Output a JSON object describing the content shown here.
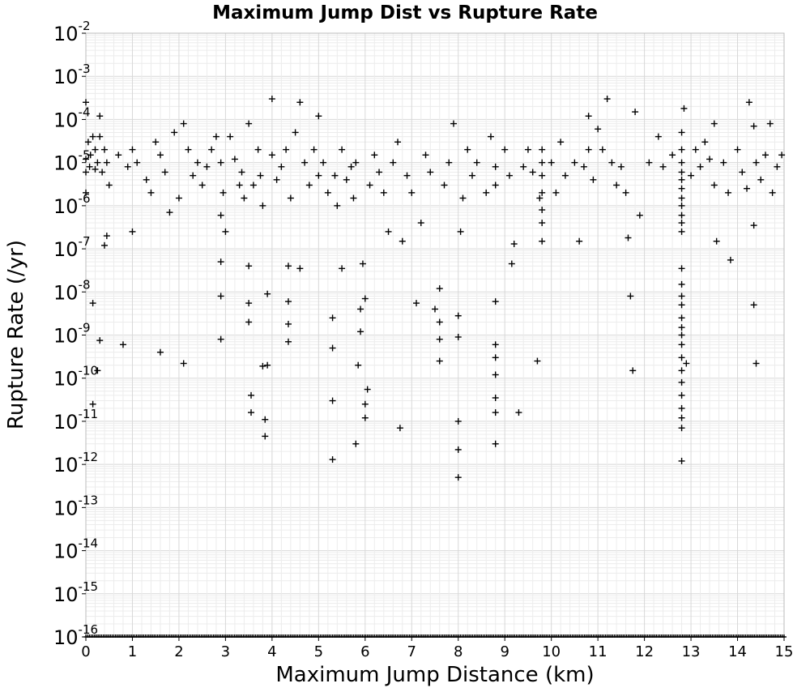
{
  "chart_data": {
    "type": "scatter",
    "title": "Maximum Jump Dist vs Rupture Rate",
    "xlabel": "Maximum Jump Distance (km)",
    "ylabel": "Rupture Rate (/yr)",
    "xlim": [
      0,
      15
    ],
    "ylim_log10": [
      -16,
      -2
    ],
    "y_scale": "log",
    "x_ticks": [
      "0",
      "1",
      "2",
      "3",
      "4",
      "5",
      "6",
      "7",
      "8",
      "9",
      "10",
      "11",
      "12",
      "13",
      "14",
      "15"
    ],
    "y_ticks": [
      {
        "base": "10",
        "exp": "-2"
      },
      {
        "base": "10",
        "exp": "-3"
      },
      {
        "base": "10",
        "exp": "-4"
      },
      {
        "base": "10",
        "exp": "-5"
      },
      {
        "base": "10",
        "exp": "-6"
      },
      {
        "base": "10",
        "exp": "-7"
      },
      {
        "base": "10",
        "exp": "-8"
      },
      {
        "base": "10",
        "exp": "-9"
      },
      {
        "base": "10",
        "exp": "-10"
      },
      {
        "base": "10",
        "exp": "-11"
      },
      {
        "base": "10",
        "exp": "-12"
      },
      {
        "base": "10",
        "exp": "-13"
      },
      {
        "base": "10",
        "exp": "-14"
      },
      {
        "base": "10",
        "exp": "-15"
      },
      {
        "base": "10",
        "exp": "-16"
      }
    ],
    "grid": true,
    "marker": "+",
    "marker_color": "#000000",
    "series": [
      {
        "points": [
          [
            0.0,
            0.00025
          ],
          [
            0.0,
            1.2e-05
          ],
          [
            0.0,
            6e-06
          ],
          [
            0.0,
            2e-06
          ],
          [
            0.05,
            3e-05
          ],
          [
            0.08,
            8e-06
          ],
          [
            0.1,
            1.5e-05
          ],
          [
            0.15,
            4e-05
          ],
          [
            0.2,
            2e-05
          ],
          [
            0.2,
            7e-06
          ],
          [
            0.25,
            1e-05
          ],
          [
            0.3,
            0.00012
          ],
          [
            0.3,
            4e-05
          ],
          [
            0.35,
            6e-06
          ],
          [
            0.4,
            2e-05
          ],
          [
            0.45,
            1e-05
          ],
          [
            0.5,
            3e-06
          ],
          [
            0.4,
            1.2e-07
          ],
          [
            0.45,
            2e-07
          ],
          [
            0.15,
            5.5e-09
          ],
          [
            0.3,
            7.5e-10
          ],
          [
            0.25,
            1.5e-10
          ],
          [
            0.15,
            2.5e-11
          ],
          [
            0.8,
            6e-10
          ],
          [
            1.0,
            2.5e-07
          ],
          [
            0.7,
            1.5e-05
          ],
          [
            0.9,
            8e-06
          ],
          [
            1.0,
            2e-05
          ],
          [
            1.1,
            1e-05
          ],
          [
            1.3,
            4e-06
          ],
          [
            1.4,
            2e-06
          ],
          [
            1.5,
            3e-05
          ],
          [
            1.6,
            1.5e-05
          ],
          [
            1.7,
            6e-06
          ],
          [
            1.8,
            7e-07
          ],
          [
            1.9,
            5e-05
          ],
          [
            2.0,
            1.5e-06
          ],
          [
            2.1,
            8e-05
          ],
          [
            2.2,
            2e-05
          ],
          [
            2.3,
            5e-06
          ],
          [
            2.4,
            1e-05
          ],
          [
            1.6,
            4e-10
          ],
          [
            2.1,
            2.2e-10
          ],
          [
            2.5,
            3e-06
          ],
          [
            2.6,
            8e-06
          ],
          [
            2.7,
            2e-05
          ],
          [
            2.8,
            4e-05
          ],
          [
            2.9,
            1e-05
          ],
          [
            2.95,
            2e-06
          ],
          [
            2.9,
            6e-07
          ],
          [
            2.9,
            5e-08
          ],
          [
            2.9,
            8e-09
          ],
          [
            2.9,
            8e-10
          ],
          [
            3.0,
            2.5e-07
          ],
          [
            3.1,
            4e-05
          ],
          [
            3.2,
            1.2e-05
          ],
          [
            3.3,
            3e-06
          ],
          [
            3.35,
            6e-06
          ],
          [
            3.4,
            1.5e-06
          ],
          [
            3.5,
            8e-05
          ],
          [
            3.5,
            4e-08
          ],
          [
            3.5,
            5.5e-09
          ],
          [
            3.5,
            2e-09
          ],
          [
            3.55,
            4e-11
          ],
          [
            3.55,
            1.6e-11
          ],
          [
            3.6,
            3e-06
          ],
          [
            3.7,
            2e-05
          ],
          [
            3.75,
            5e-06
          ],
          [
            3.8,
            1e-06
          ],
          [
            3.8,
            1.9e-10
          ],
          [
            3.9,
            2e-10
          ],
          [
            3.85,
            1.1e-11
          ],
          [
            3.85,
            4.5e-12
          ],
          [
            3.9,
            9e-09
          ],
          [
            4.0,
            0.0003
          ],
          [
            4.0,
            1.5e-05
          ],
          [
            4.1,
            4e-06
          ],
          [
            4.2,
            8e-06
          ],
          [
            4.3,
            2e-05
          ],
          [
            4.35,
            4e-08
          ],
          [
            4.35,
            6e-09
          ],
          [
            4.35,
            1.8e-09
          ],
          [
            4.35,
            7e-10
          ],
          [
            4.4,
            1.5e-06
          ],
          [
            4.5,
            5e-05
          ],
          [
            4.6,
            0.00025
          ],
          [
            4.6,
            3.5e-08
          ],
          [
            4.7,
            1e-05
          ],
          [
            4.8,
            3e-06
          ],
          [
            4.9,
            2e-05
          ],
          [
            5.0,
            0.00012
          ],
          [
            5.0,
            5e-06
          ],
          [
            5.1,
            1e-05
          ],
          [
            5.2,
            2e-06
          ],
          [
            5.3,
            2.5e-09
          ],
          [
            5.3,
            5e-10
          ],
          [
            5.3,
            3e-11
          ],
          [
            5.3,
            1.3e-12
          ],
          [
            5.35,
            5e-06
          ],
          [
            5.4,
            1e-06
          ],
          [
            5.5,
            3.5e-08
          ],
          [
            5.5,
            2e-05
          ],
          [
            5.6,
            4e-06
          ],
          [
            5.7,
            8e-06
          ],
          [
            5.75,
            1.5e-06
          ],
          [
            5.8,
            1e-05
          ],
          [
            5.85,
            2e-10
          ],
          [
            5.9,
            4e-09
          ],
          [
            5.9,
            1.2e-09
          ],
          [
            5.95,
            4.5e-08
          ],
          [
            6.0,
            7e-09
          ],
          [
            6.0,
            2.5e-11
          ],
          [
            6.0,
            1.2e-11
          ],
          [
            6.05,
            5.5e-11
          ],
          [
            5.8,
            3e-12
          ],
          [
            6.1,
            3e-06
          ],
          [
            6.2,
            1.5e-05
          ],
          [
            6.3,
            6e-06
          ],
          [
            6.4,
            2e-06
          ],
          [
            6.5,
            2.5e-07
          ],
          [
            6.6,
            1e-05
          ],
          [
            6.7,
            3e-05
          ],
          [
            6.75,
            7e-12
          ],
          [
            6.8,
            1.5e-07
          ],
          [
            6.9,
            5e-06
          ],
          [
            7.0,
            2e-06
          ],
          [
            7.1,
            5.5e-09
          ],
          [
            7.2,
            4e-07
          ],
          [
            7.3,
            1.5e-05
          ],
          [
            7.4,
            6e-06
          ],
          [
            7.5,
            4e-09
          ],
          [
            7.6,
            1.2e-08
          ],
          [
            7.6,
            2e-09
          ],
          [
            7.6,
            8e-10
          ],
          [
            7.6,
            2.5e-10
          ],
          [
            7.7,
            3e-06
          ],
          [
            7.8,
            1e-05
          ],
          [
            7.9,
            8e-05
          ],
          [
            8.0,
            2.8e-09
          ],
          [
            8.0,
            9e-10
          ],
          [
            8.0,
            1e-11
          ],
          [
            8.0,
            2.2e-12
          ],
          [
            8.0,
            5e-13
          ],
          [
            8.05,
            2.5e-07
          ],
          [
            8.1,
            1.5e-06
          ],
          [
            8.2,
            2e-05
          ],
          [
            8.3,
            5e-06
          ],
          [
            8.4,
            1e-05
          ],
          [
            8.6,
            2e-06
          ],
          [
            8.7,
            4e-05
          ],
          [
            8.8,
            6e-09
          ],
          [
            8.8,
            6e-10
          ],
          [
            8.8,
            3e-10
          ],
          [
            8.8,
            3.5e-11
          ],
          [
            8.8,
            1.6e-11
          ],
          [
            8.8,
            3e-12
          ],
          [
            8.8,
            1.2e-10
          ],
          [
            8.8,
            8e-06
          ],
          [
            8.8,
            3e-06
          ],
          [
            9.0,
            2e-05
          ],
          [
            9.1,
            5e-06
          ],
          [
            9.15,
            4.5e-08
          ],
          [
            9.2,
            1.3e-07
          ],
          [
            9.3,
            1.6e-11
          ],
          [
            9.4,
            8e-06
          ],
          [
            9.5,
            2e-05
          ],
          [
            9.6,
            6e-06
          ],
          [
            9.7,
            2.5e-10
          ],
          [
            9.75,
            1.5e-06
          ],
          [
            9.8,
            2e-05
          ],
          [
            9.8,
            1e-05
          ],
          [
            9.8,
            5e-06
          ],
          [
            9.8,
            2e-06
          ],
          [
            9.8,
            8e-07
          ],
          [
            9.8,
            4e-07
          ],
          [
            9.8,
            1.5e-07
          ],
          [
            10.0,
            1e-05
          ],
          [
            10.1,
            2e-06
          ],
          [
            10.2,
            3e-05
          ],
          [
            10.3,
            5e-06
          ],
          [
            10.5,
            1e-05
          ],
          [
            10.6,
            1.5e-07
          ],
          [
            10.7,
            8e-06
          ],
          [
            10.8,
            2e-05
          ],
          [
            10.8,
            0.00012
          ],
          [
            10.9,
            4e-06
          ],
          [
            11.0,
            6e-05
          ],
          [
            11.1,
            2e-05
          ],
          [
            11.2,
            0.0003
          ],
          [
            11.3,
            1e-05
          ],
          [
            11.4,
            3e-06
          ],
          [
            11.5,
            8e-06
          ],
          [
            11.6,
            2e-06
          ],
          [
            11.65,
            1.8e-07
          ],
          [
            11.7,
            8e-09
          ],
          [
            11.75,
            1.5e-10
          ],
          [
            11.8,
            0.00015
          ],
          [
            11.9,
            6e-07
          ],
          [
            12.1,
            1e-05
          ],
          [
            12.3,
            4e-05
          ],
          [
            12.4,
            8e-06
          ],
          [
            12.6,
            1.5e-05
          ],
          [
            12.8,
            2e-05
          ],
          [
            12.8,
            1e-05
          ],
          [
            12.8,
            6e-06
          ],
          [
            12.8,
            4e-06
          ],
          [
            12.8,
            2.5e-06
          ],
          [
            12.8,
            1.5e-06
          ],
          [
            12.8,
            1e-06
          ],
          [
            12.8,
            6e-07
          ],
          [
            12.8,
            4e-07
          ],
          [
            12.8,
            2.5e-07
          ],
          [
            12.8,
            3.5e-08
          ],
          [
            12.8,
            1.5e-08
          ],
          [
            12.8,
            8e-09
          ],
          [
            12.8,
            5e-09
          ],
          [
            12.8,
            2.5e-09
          ],
          [
            12.8,
            1.5e-09
          ],
          [
            12.8,
            1e-09
          ],
          [
            12.8,
            6e-10
          ],
          [
            12.8,
            3e-10
          ],
          [
            12.8,
            1.5e-10
          ],
          [
            12.8,
            8e-11
          ],
          [
            12.8,
            4e-11
          ],
          [
            12.8,
            2e-11
          ],
          [
            12.8,
            1.2e-11
          ],
          [
            12.8,
            7e-12
          ],
          [
            12.8,
            1.2e-12
          ],
          [
            12.8,
            5e-05
          ],
          [
            12.85,
            0.00018
          ],
          [
            12.9,
            2.2e-10
          ],
          [
            13.0,
            5e-06
          ],
          [
            13.1,
            2e-05
          ],
          [
            13.2,
            8e-06
          ],
          [
            13.3,
            3e-05
          ],
          [
            13.4,
            1.2e-05
          ],
          [
            13.5,
            3e-06
          ],
          [
            13.5,
            8e-05
          ],
          [
            13.55,
            1.5e-07
          ],
          [
            13.7,
            1e-05
          ],
          [
            13.8,
            2e-06
          ],
          [
            13.85,
            5.5e-08
          ],
          [
            14.0,
            2e-05
          ],
          [
            14.1,
            6e-06
          ],
          [
            14.2,
            2.5e-06
          ],
          [
            14.25,
            0.00025
          ],
          [
            14.35,
            7e-05
          ],
          [
            14.35,
            3.5e-07
          ],
          [
            14.35,
            5e-09
          ],
          [
            14.4,
            2.2e-10
          ],
          [
            14.4,
            1e-05
          ],
          [
            14.5,
            4e-06
          ],
          [
            14.6,
            1.5e-05
          ],
          [
            14.7,
            8e-05
          ],
          [
            14.75,
            2e-06
          ],
          [
            14.85,
            8e-06
          ],
          [
            14.95,
            1.5e-05
          ]
        ]
      },
      {
        "floor_band": true,
        "y": 1e-16,
        "x_range": [
          0,
          15
        ],
        "count": 400
      }
    ]
  }
}
